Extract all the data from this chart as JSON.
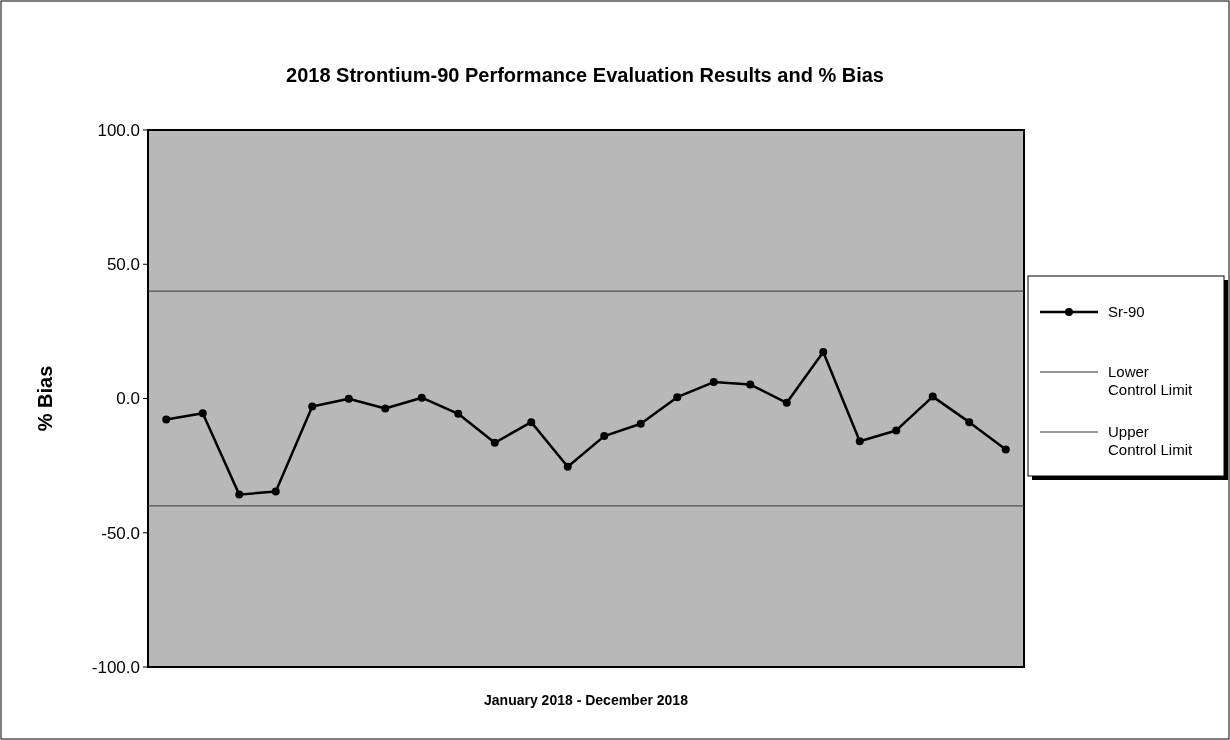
{
  "chart_data": {
    "type": "line",
    "title": "2018 Strontium-90 Performance Evaluation Results and % Bias",
    "xlabel": "January 2018 - December 2018",
    "ylabel": "% Bias",
    "categories": [
      null,
      null,
      null,
      null,
      null,
      null,
      null,
      null,
      null,
      null,
      null,
      null,
      null,
      null,
      null,
      null,
      null,
      null,
      null,
      null,
      null,
      null,
      null,
      null
    ],
    "series": [
      {
        "name": "Sr-90",
        "color": "#000000",
        "values": [
          -7.8,
          -5.5,
          -35.8,
          -34.6,
          -3,
          -0.1,
          -3.7,
          0.3,
          -5.7,
          -16.5,
          -8.8,
          -25.4,
          -14,
          -9.4,
          0.5,
          6.1,
          5.2,
          -1.6,
          17.3,
          -15.9,
          -11.9,
          0.7,
          -8.8,
          -19
        ]
      }
    ],
    "ylim": [
      -100,
      100
    ],
    "yticks": [
      {
        "value": -100,
        "label": "-100.0"
      },
      {
        "value": -50,
        "label": "-50.0"
      },
      {
        "value": 0,
        "label": "0.0"
      },
      {
        "value": 50,
        "label": "50.0"
      },
      {
        "value": 100,
        "label": "100.0"
      }
    ],
    "ref_lines": [
      {
        "axis": "y",
        "value": -40,
        "label": "Lower Control Limit",
        "color": "#333333"
      },
      {
        "axis": "y",
        "value": 40,
        "label": "Upper Control Limit",
        "color": "#333333"
      }
    ],
    "marker": "circle",
    "legend": "right",
    "grid": false
  }
}
